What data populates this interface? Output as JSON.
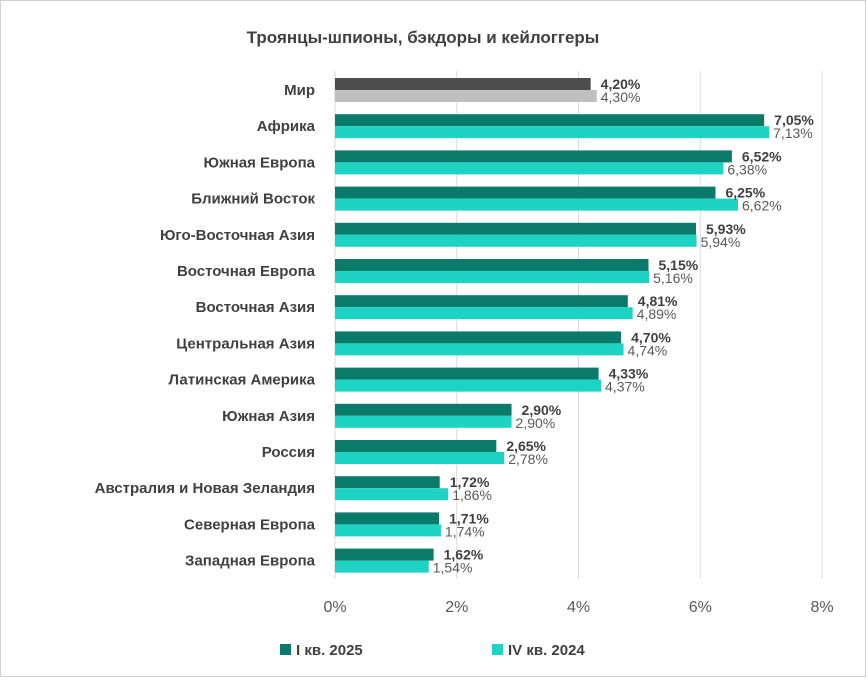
{
  "chart_data": {
    "type": "bar",
    "orientation": "horizontal",
    "title": "Троянцы-шпионы, бэкдоры и кейлоггеры",
    "categories": [
      "Мир",
      "Африка",
      "Южная Европа",
      "Ближний Восток",
      "Юго-Восточная Азия",
      "Восточная Европа",
      "Восточная Азия",
      "Центральная Азия",
      "Латинская Америка",
      "Южная Азия",
      "Россия",
      "Австралия и Новая Зеландия",
      "Северная Европа",
      "Западная Европа"
    ],
    "series": [
      {
        "name": "I кв. 2025",
        "values": [
          4.2,
          7.05,
          6.52,
          6.25,
          5.93,
          5.15,
          4.81,
          4.7,
          4.33,
          2.9,
          2.65,
          1.72,
          1.71,
          1.62
        ],
        "labels": [
          "4,20%",
          "7,05%",
          "6,52%",
          "6,25%",
          "5,93%",
          "5,15%",
          "4,81%",
          "4,70%",
          "4,33%",
          "2,90%",
          "2,65%",
          "1,72%",
          "1,71%",
          "1,62%"
        ],
        "color": "#0a7a6a",
        "highlight_color": "#4d4d4d"
      },
      {
        "name": "IV кв. 2024",
        "values": [
          4.3,
          7.13,
          6.38,
          6.62,
          5.94,
          5.16,
          4.89,
          4.74,
          4.37,
          2.9,
          2.78,
          1.86,
          1.74,
          1.54
        ],
        "labels": [
          "4,30%",
          "7,13%",
          "6,38%",
          "6,62%",
          "5,94%",
          "5,16%",
          "4,89%",
          "4,74%",
          "4,37%",
          "2,90%",
          "2,78%",
          "1,86%",
          "1,74%",
          "1,54%"
        ],
        "color": "#1dd3c3",
        "highlight_color": "#bfbfbf"
      }
    ],
    "xlim": [
      0,
      8
    ],
    "x_ticks": [
      0,
      2,
      4,
      6,
      8
    ],
    "x_tick_labels": [
      "0%",
      "2%",
      "4%",
      "6%",
      "8%"
    ],
    "grid": "vertical",
    "legend_position": "bottom"
  }
}
